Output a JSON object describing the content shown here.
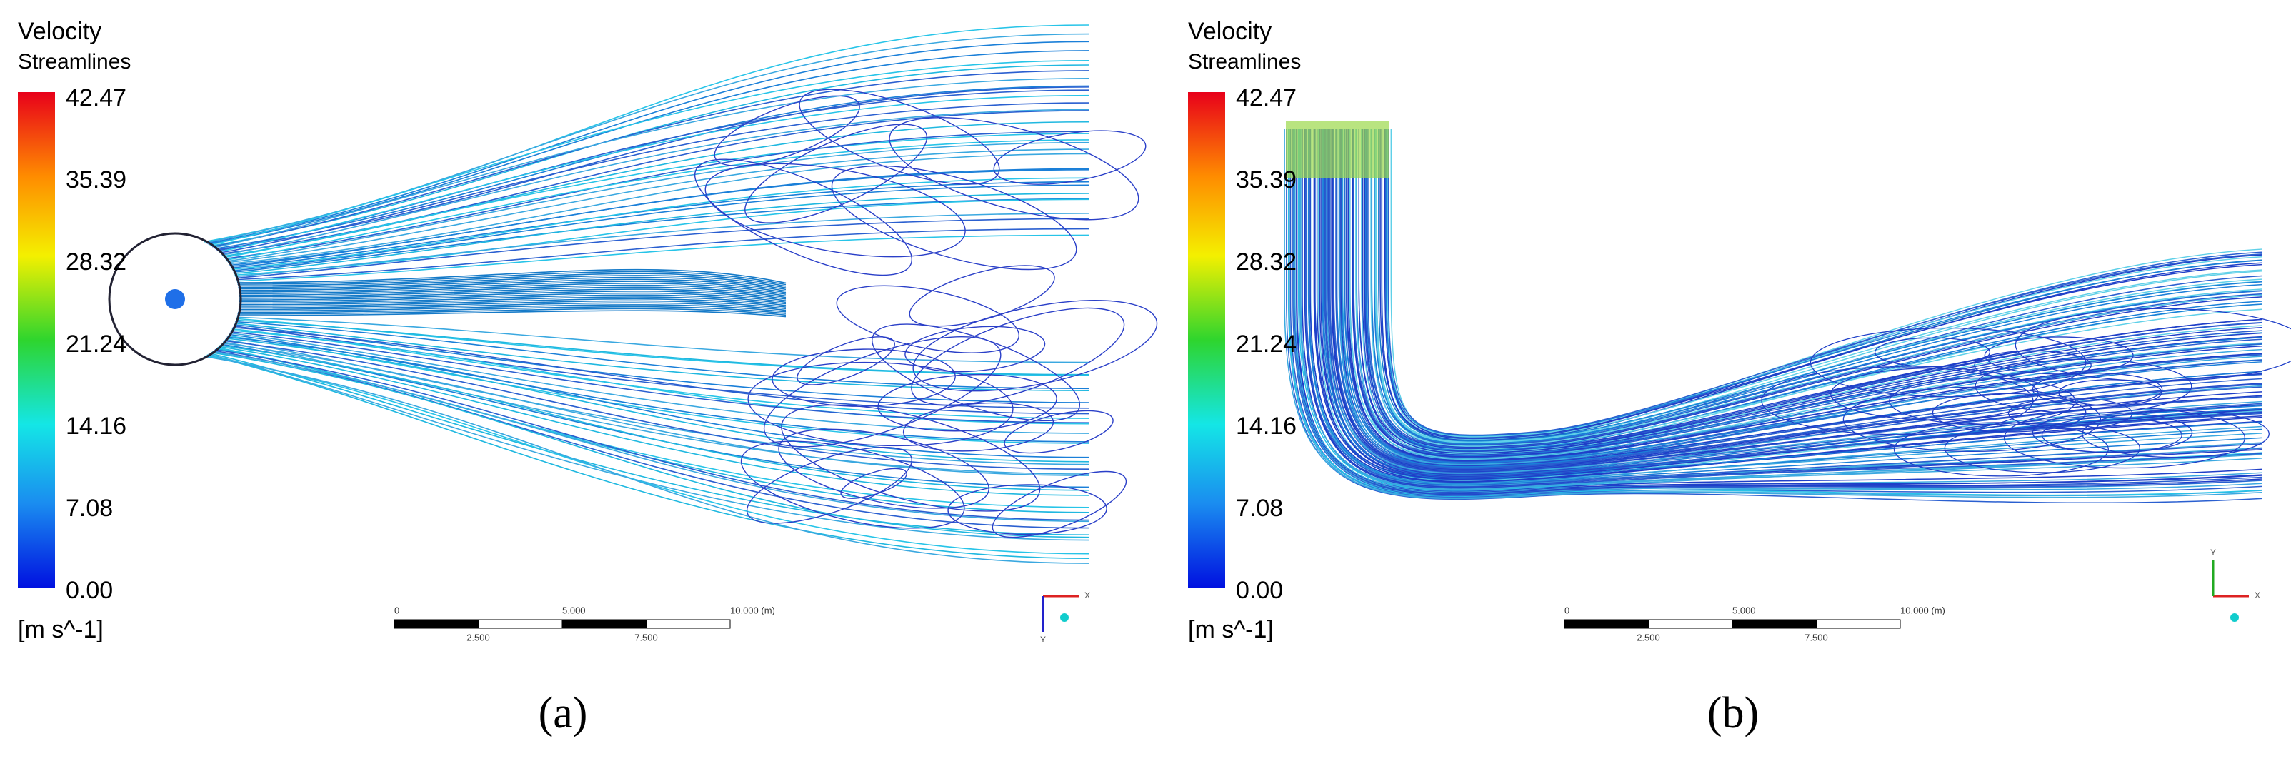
{
  "panels": [
    {
      "legend": {
        "title": "Velocity",
        "subtitle": "Streamlines",
        "ticks": [
          "42.47",
          "35.39",
          "28.32",
          "21.24",
          "14.16",
          "7.08",
          "0.00"
        ],
        "unit": "[m s^-1]"
      },
      "scale_bar": {
        "labels_top": [
          "0",
          "5.000",
          "10.000 (m)"
        ],
        "labels_bottom": [
          "2.500",
          "7.500"
        ]
      },
      "axes": {
        "x": "X",
        "y": "Y"
      },
      "caption": "(a)"
    },
    {
      "legend": {
        "title": "Velocity",
        "subtitle": "Streamlines",
        "ticks": [
          "42.47",
          "35.39",
          "28.32",
          "21.24",
          "14.16",
          "7.08",
          "0.00"
        ],
        "unit": "[m s^-1]"
      },
      "scale_bar": {
        "labels_top": [
          "0",
          "5.000",
          "10.000 (m)"
        ],
        "labels_bottom": [
          "2.500",
          "7.500"
        ]
      },
      "axes": {
        "x": "X",
        "y": "Y"
      },
      "caption": "(b)"
    }
  ]
}
